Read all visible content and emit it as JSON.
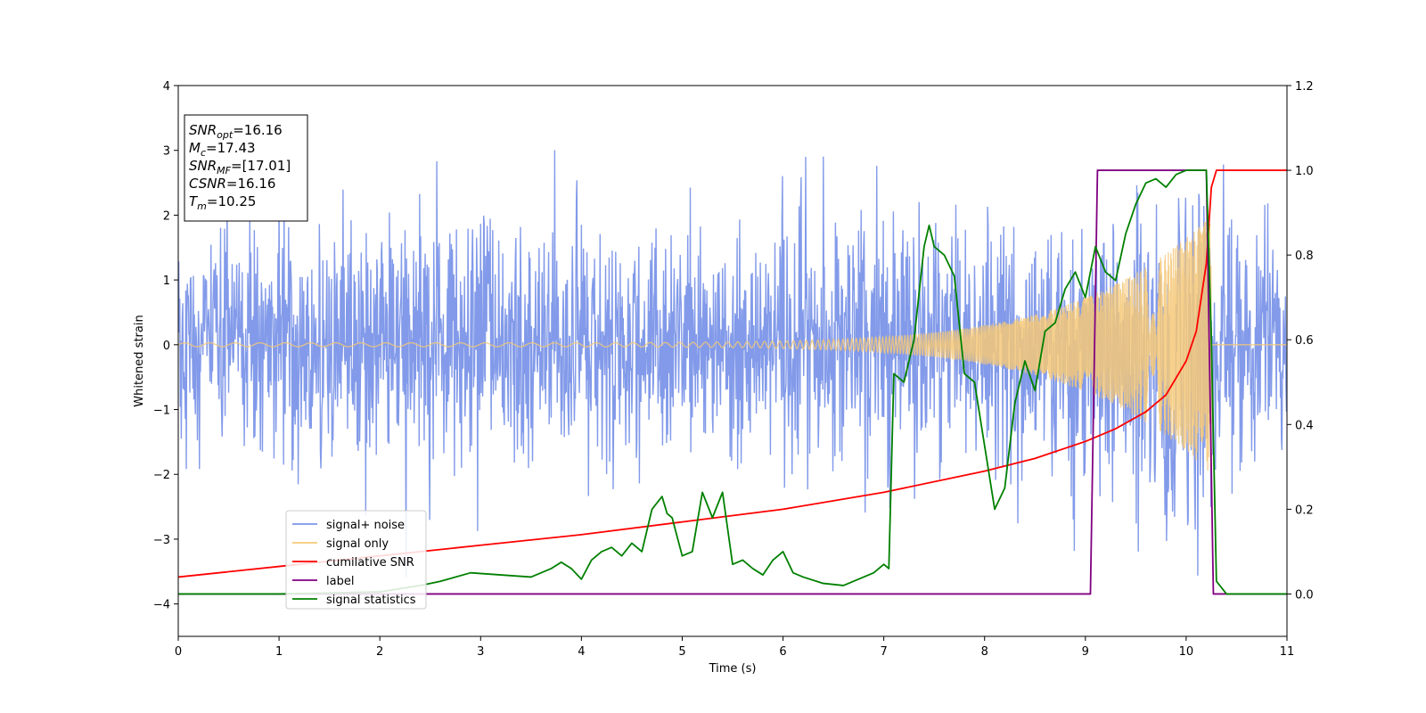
{
  "chart_data": {
    "type": "line",
    "xlabel": "Time (s)",
    "ylabel": "Whitened strain",
    "xlim": [
      0,
      11
    ],
    "ylim_left": [
      -4.5,
      4
    ],
    "ylim_right": [
      -0.1,
      1.2
    ],
    "x_ticks": [
      0,
      1,
      2,
      3,
      4,
      5,
      6,
      7,
      8,
      9,
      10,
      11
    ],
    "y_ticks_left": [
      -4,
      -3,
      -2,
      -1,
      0,
      1,
      2,
      3,
      4
    ],
    "y_ticks_right": [
      0.0,
      0.2,
      0.4,
      0.6,
      0.8,
      1.0,
      1.2
    ],
    "grid": false,
    "legend_position": "lower-left",
    "annotation": {
      "lines": [
        {
          "name": "SNR",
          "sub": "opt",
          "value": "=16.16"
        },
        {
          "name": "M",
          "sub": "c",
          "value": "=17.43"
        },
        {
          "name": "SNR",
          "sub": "MF",
          "value": "=[17.01]"
        },
        {
          "name": "CSNR",
          "sub": "",
          "value": "=16.16"
        },
        {
          "name": "T",
          "sub": "m",
          "value": "=10.25"
        }
      ]
    },
    "series": [
      {
        "name": "signal+ noise",
        "axis": "left",
        "color": "#7b95e8",
        "description_values": {
          "noise_std": 0.9,
          "noise_peak_range": [
            -3.7,
            3.4
          ]
        }
      },
      {
        "name": "signal only",
        "axis": "left",
        "color": "#f5c878",
        "chirp": {
          "t_merge": 10.25,
          "amp_start": 0.03,
          "amp_end": 2.0,
          "freq_start": 4.0,
          "freq_end": 40.0
        }
      },
      {
        "name": "cumilative SNR",
        "axis": "right",
        "color": "#ff0000",
        "x": [
          0,
          1,
          2,
          3,
          4,
          5,
          6,
          7,
          8,
          8.5,
          9,
          9.3,
          9.6,
          9.8,
          10.0,
          10.1,
          10.2,
          10.25,
          10.3,
          11
        ],
        "y": [
          0.04,
          0.065,
          0.09,
          0.115,
          0.14,
          0.17,
          0.2,
          0.24,
          0.29,
          0.32,
          0.36,
          0.39,
          0.43,
          0.47,
          0.55,
          0.62,
          0.78,
          0.96,
          1.0,
          1.0
        ]
      },
      {
        "name": "label",
        "axis": "right",
        "color": "#800080",
        "x": [
          0,
          9.05,
          9.12,
          10.2,
          10.27,
          11
        ],
        "y": [
          0,
          0,
          1,
          1,
          0,
          0
        ]
      },
      {
        "name": "signal statistics",
        "axis": "right",
        "color": "#008000",
        "x": [
          0,
          1.0,
          2.0,
          2.4,
          2.6,
          2.9,
          3.2,
          3.5,
          3.7,
          3.8,
          3.9,
          4.0,
          4.1,
          4.2,
          4.3,
          4.4,
          4.5,
          4.6,
          4.7,
          4.8,
          4.85,
          4.9,
          5.0,
          5.1,
          5.2,
          5.3,
          5.4,
          5.5,
          5.6,
          5.7,
          5.8,
          5.9,
          6.0,
          6.1,
          6.2,
          6.4,
          6.6,
          6.7,
          6.9,
          7.0,
          7.05,
          7.1,
          7.2,
          7.3,
          7.4,
          7.45,
          7.5,
          7.6,
          7.7,
          7.8,
          7.9,
          8.0,
          8.1,
          8.2,
          8.3,
          8.4,
          8.5,
          8.6,
          8.7,
          8.8,
          8.9,
          9.0,
          9.1,
          9.2,
          9.3,
          9.4,
          9.5,
          9.6,
          9.7,
          9.8,
          9.9,
          10.0,
          10.1,
          10.2,
          10.25,
          10.3,
          10.4,
          11
        ],
        "y": [
          0.0,
          0.0,
          0.005,
          0.02,
          0.03,
          0.05,
          0.045,
          0.04,
          0.06,
          0.075,
          0.06,
          0.035,
          0.08,
          0.1,
          0.11,
          0.09,
          0.12,
          0.1,
          0.2,
          0.23,
          0.19,
          0.18,
          0.09,
          0.1,
          0.24,
          0.18,
          0.24,
          0.07,
          0.08,
          0.06,
          0.045,
          0.08,
          0.1,
          0.05,
          0.04,
          0.025,
          0.02,
          0.03,
          0.05,
          0.07,
          0.06,
          0.52,
          0.5,
          0.6,
          0.82,
          0.87,
          0.82,
          0.8,
          0.75,
          0.52,
          0.5,
          0.35,
          0.2,
          0.25,
          0.45,
          0.55,
          0.48,
          0.62,
          0.64,
          0.72,
          0.76,
          0.7,
          0.82,
          0.76,
          0.74,
          0.85,
          0.92,
          0.97,
          0.98,
          0.96,
          0.99,
          1.0,
          1.0,
          1.0,
          0.6,
          0.03,
          0.0,
          0.0
        ]
      }
    ]
  }
}
